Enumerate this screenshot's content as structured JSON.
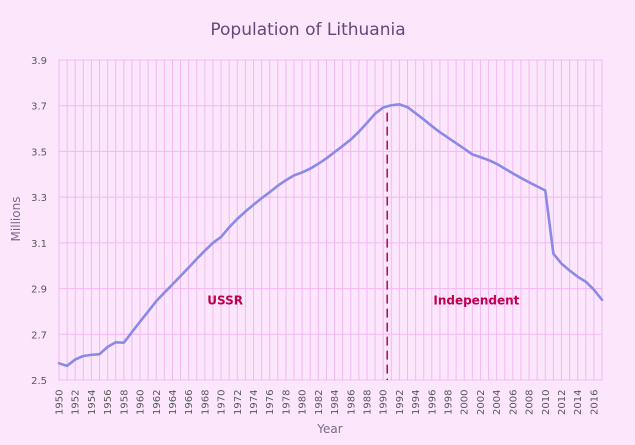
{
  "colors": {
    "background": "#FCE6FC",
    "gridline": "#F2B8F2",
    "line": "#8A8AE6",
    "annotation": "#C0004F",
    "divider": "#B0155A"
  },
  "chart_data": {
    "type": "line",
    "title": "Population of Lithuania",
    "xlabel": "Year",
    "ylabel": "Millions",
    "xlim": [
      1950,
      2017
    ],
    "ylim": [
      2.5,
      3.9
    ],
    "yticks": [
      "2.5",
      "2.7",
      "2.9",
      "3.1",
      "3.3",
      "3.5",
      "3.7",
      "3.9"
    ],
    "xticks": [
      "1950",
      "1952",
      "1954",
      "1956",
      "1958",
      "1960",
      "1962",
      "1964",
      "1966",
      "1968",
      "1970",
      "1972",
      "1974",
      "1976",
      "1978",
      "1980",
      "1982",
      "1984",
      "1986",
      "1988",
      "1990",
      "1992",
      "1994",
      "1996",
      "1998",
      "2000",
      "2002",
      "2004",
      "2006",
      "2008",
      "2010",
      "2012",
      "2014",
      "2016"
    ],
    "grid": true,
    "legend": "none",
    "x": [
      1950,
      1951,
      1952,
      1953,
      1954,
      1955,
      1956,
      1957,
      1958,
      1959,
      1960,
      1961,
      1962,
      1963,
      1964,
      1965,
      1966,
      1967,
      1968,
      1969,
      1970,
      1971,
      1972,
      1973,
      1974,
      1975,
      1976,
      1977,
      1978,
      1979,
      1980,
      1981,
      1982,
      1983,
      1984,
      1985,
      1986,
      1987,
      1988,
      1989,
      1990,
      1991,
      1992,
      1993,
      1994,
      1995,
      1996,
      1997,
      1998,
      1999,
      2000,
      2001,
      2002,
      2003,
      2004,
      2005,
      2006,
      2007,
      2008,
      2009,
      2010,
      2011,
      2012,
      2013,
      2014,
      2015,
      2016,
      2017
    ],
    "y": [
      2.573,
      2.562,
      2.59,
      2.605,
      2.61,
      2.613,
      2.645,
      2.665,
      2.663,
      2.71,
      2.755,
      2.8,
      2.845,
      2.882,
      2.918,
      2.955,
      2.992,
      3.03,
      3.066,
      3.1,
      3.126,
      3.168,
      3.205,
      3.237,
      3.267,
      3.295,
      3.322,
      3.35,
      3.374,
      3.395,
      3.408,
      3.425,
      3.446,
      3.47,
      3.497,
      3.524,
      3.552,
      3.586,
      3.625,
      3.665,
      3.692,
      3.702,
      3.706,
      3.694,
      3.667,
      3.64,
      3.611,
      3.584,
      3.56,
      3.536,
      3.512,
      3.487,
      3.475,
      3.462,
      3.446,
      3.425,
      3.404,
      3.384,
      3.365,
      3.347,
      3.329,
      3.053,
      3.009,
      2.979,
      2.952,
      2.93,
      2.895,
      2.851
    ],
    "annotations": [
      {
        "text": "USSR",
        "x": 1970.5,
        "y": 2.83
      },
      {
        "text": "Independent",
        "x": 2001.5,
        "y": 2.83
      }
    ],
    "divider_x": 1990.5
  }
}
